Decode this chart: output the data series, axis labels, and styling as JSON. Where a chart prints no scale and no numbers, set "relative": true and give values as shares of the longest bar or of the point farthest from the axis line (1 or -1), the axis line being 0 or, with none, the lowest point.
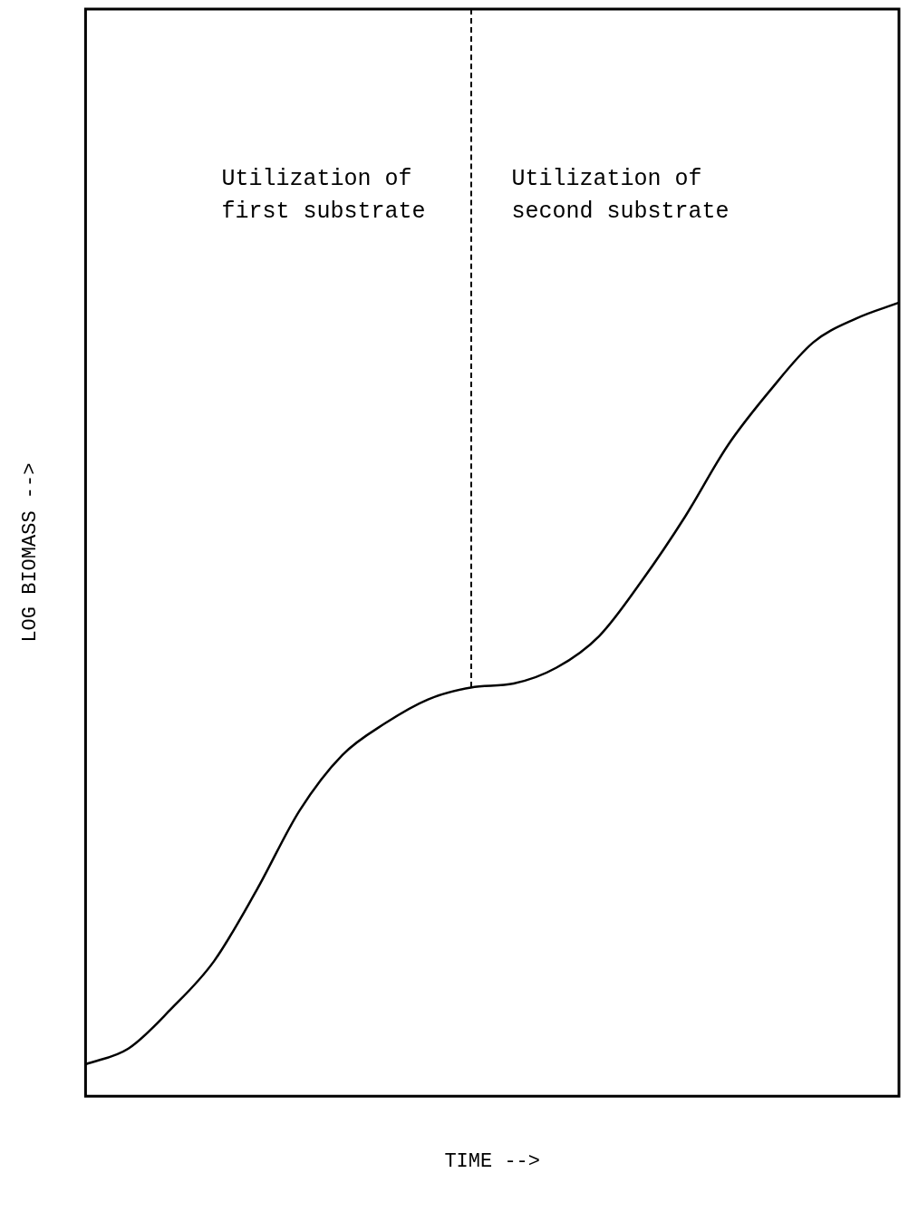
{
  "chart_data": {
    "type": "line",
    "xlabel": "TIME -->",
    "ylabel": "LOG BIOMASS -->",
    "annotations": [
      "Utilization of\nfirst substrate",
      "Utilization of\nsecond substrate"
    ],
    "categories": [
      null,
      null,
      null,
      null,
      null,
      null,
      null,
      null,
      null,
      null,
      null,
      null,
      null,
      null,
      null,
      null,
      null,
      null,
      null,
      null
    ],
    "relative": true,
    "marker": "none",
    "line_style": "solid",
    "series": [
      {
        "color": "#000000",
        "values": [
          0.04,
          0.06,
          0.11,
          0.17,
          0.26,
          0.36,
          0.43,
          0.47,
          0.5,
          0.515,
          0.52,
          0.54,
          0.58,
          0.65,
          0.73,
          0.82,
          0.89,
          0.95,
          0.98,
          1
        ]
      }
    ]
  }
}
